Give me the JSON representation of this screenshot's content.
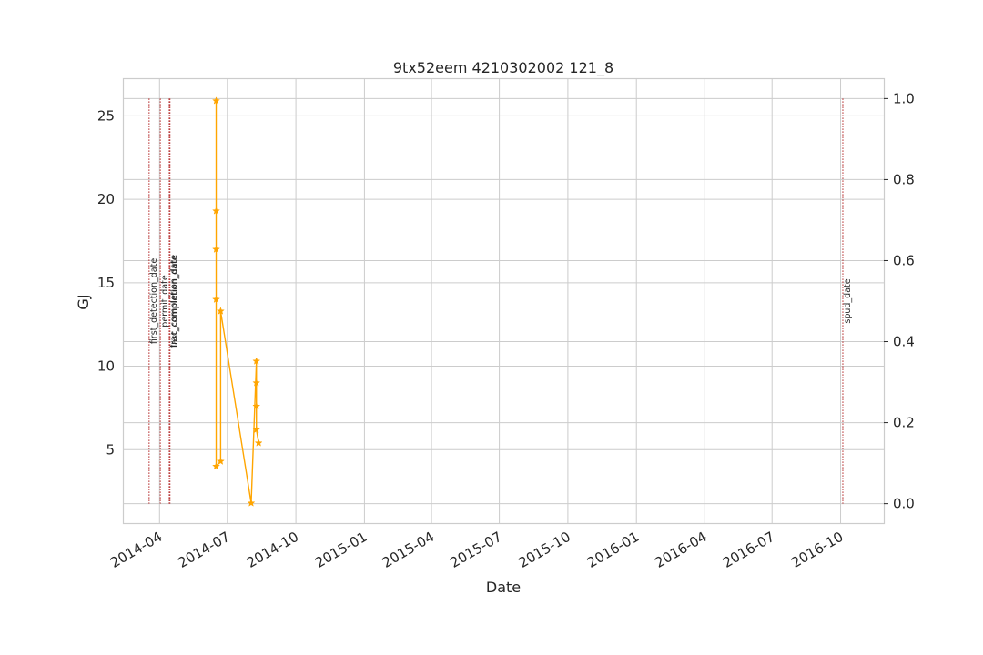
{
  "chart_data": {
    "type": "line",
    "title": "9tx52eem 4210302002 121_8",
    "xlabel": "Date",
    "ylabel": "GJ",
    "ylabel_color": "#1f77b4",
    "series_color": "#ffa500",
    "event_color": "#b22222",
    "xlim": [
      "2014-02-12",
      "2016-11-28"
    ],
    "ylim": [
      0.6,
      27.2
    ],
    "y2lim": [
      -0.048,
      1.048
    ],
    "x_ticks": [
      "2014-04-01",
      "2014-07-01",
      "2014-10-01",
      "2015-01-01",
      "2015-04-01",
      "2015-07-01",
      "2015-10-01",
      "2016-01-01",
      "2016-04-01",
      "2016-07-01",
      "2016-10-01"
    ],
    "x_tick_labels": [
      "2014-04",
      "2014-07",
      "2014-10",
      "2015-01",
      "2015-04",
      "2015-07",
      "2015-10",
      "2016-01",
      "2016-04",
      "2016-07",
      "2016-10"
    ],
    "y_ticks": [
      5,
      10,
      15,
      20,
      25
    ],
    "y_tick_labels": [
      "5",
      "10",
      "15",
      "20",
      "25"
    ],
    "y2_ticks": [
      0.0,
      0.2,
      0.4,
      0.6,
      0.8,
      1.0
    ],
    "y2_tick_labels": [
      "0.0",
      "0.2",
      "0.4",
      "0.6",
      "0.8",
      "1.0"
    ],
    "series": [
      {
        "name": "GJ",
        "marker": "star",
        "points": [
          {
            "x": "2014-06-16",
            "y": 25.9
          },
          {
            "x": "2014-06-16",
            "y": 19.3
          },
          {
            "x": "2014-06-16",
            "y": 17.0
          },
          {
            "x": "2014-06-16",
            "y": 14.0
          },
          {
            "x": "2014-06-16",
            "y": 4.0
          },
          {
            "x": "2014-06-22",
            "y": 4.3
          },
          {
            "x": "2014-06-22",
            "y": 13.3
          },
          {
            "x": "2014-08-02",
            "y": 1.8
          },
          {
            "x": "2014-08-09",
            "y": 10.3
          },
          {
            "x": "2014-08-09",
            "y": 9.0
          },
          {
            "x": "2014-08-09",
            "y": 7.6
          },
          {
            "x": "2014-08-09",
            "y": 6.2
          },
          {
            "x": "2014-08-12",
            "y": 5.4
          }
        ]
      }
    ],
    "events": [
      {
        "label": "first_detection_date",
        "date": "2014-03-18"
      },
      {
        "label": "permit_date",
        "date": "2014-04-02"
      },
      {
        "label": "frac_completion_date",
        "date": "2014-04-14"
      },
      {
        "label": "last_completion_date",
        "date": "2014-04-15"
      },
      {
        "label": "spud_date",
        "date": "2016-10-04"
      }
    ]
  }
}
